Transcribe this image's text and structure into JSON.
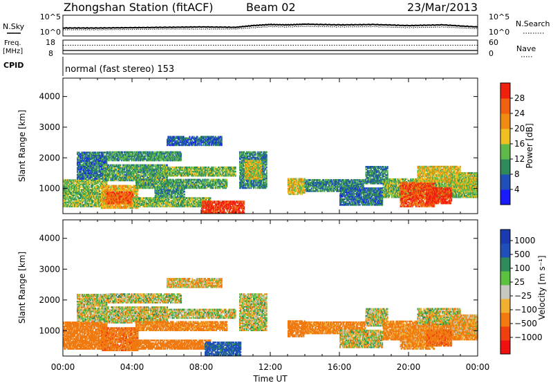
{
  "header": {
    "station": "Zhongshan Station (fitACF)",
    "beam": "Beam 02",
    "date": "23/Mar/2013"
  },
  "noise_panel": {
    "left_label": "N.Sky",
    "right_label": "N.Search",
    "left_ticks": [
      "10^5",
      "10^0"
    ],
    "right_ticks": [
      "10^5",
      "10^0"
    ]
  },
  "freq_panel": {
    "left_label_line1": "Freq.",
    "left_label_line2": "[MHz]",
    "left_ticks": [
      "18",
      "8"
    ],
    "right_label": "Nave",
    "right_ticks": [
      "60",
      "0"
    ]
  },
  "cpid_panel": {
    "label": "CPID",
    "text": "normal (fast stereo) 153"
  },
  "axes": {
    "xlabel": "Time UT",
    "ylabel": "Slant Range [km]",
    "x_ticks": [
      "00:00",
      "04:00",
      "08:00",
      "12:00",
      "16:00",
      "20:00",
      "00:00"
    ],
    "y_ticks": [
      "1000",
      "2000",
      "3000",
      "4000"
    ]
  },
  "colors": {
    "power": [
      "#1a1aff",
      "#1f4fb8",
      "#2e8a5a",
      "#5fb84a",
      "#f0c020",
      "#f08a10",
      "#f06010",
      "#f02010"
    ],
    "velocity": [
      "#f01010",
      "#f04010",
      "#f07a10",
      "#f0b030",
      "#c8c8c0",
      "#5cc040",
      "#2e8a5a",
      "#1f4fb8",
      "#1a3ab0"
    ]
  },
  "chart_data": [
    {
      "type": "line",
      "title": "Zhongshan Station (fitACF)",
      "name": "noise",
      "series": [
        {
          "name": "N.Sky",
          "x_hours": [
            0,
            2,
            4,
            6,
            8,
            10,
            11,
            12,
            13,
            14,
            16,
            18,
            20,
            22,
            24
          ],
          "y_log10": [
            1.9,
            1.9,
            2.0,
            2.1,
            2.2,
            2.1,
            2.6,
            2.9,
            2.8,
            3.0,
            2.8,
            2.9,
            2.6,
            2.8,
            2.2
          ]
        },
        {
          "name": "N.Search",
          "x_hours": [
            0,
            2,
            4,
            6,
            8,
            10,
            11,
            12,
            13,
            14,
            16,
            18,
            20,
            22,
            24
          ],
          "y_log10": [
            1.4,
            1.4,
            1.5,
            1.6,
            1.6,
            1.6,
            2.0,
            2.3,
            2.2,
            2.4,
            2.2,
            2.3,
            2.0,
            2.2,
            1.7
          ]
        }
      ],
      "ylim": [
        0,
        5
      ]
    },
    {
      "type": "line",
      "name": "frequency",
      "x_hours": [
        0,
        24
      ],
      "freq_mhz": [
        10.5,
        10.5
      ],
      "nave": [
        38,
        38
      ]
    },
    {
      "type": "heatmap",
      "name": "power",
      "xlabel": "Time UT",
      "ylabel": "Slant Range [km]",
      "xlim": [
        0,
        24
      ],
      "ylim": [
        180,
        4600
      ],
      "colorbar": {
        "label": "Power [dB]",
        "ticks": [
          4,
          8,
          12,
          16,
          20,
          24,
          28
        ],
        "range": [
          0,
          32
        ]
      },
      "regions": [
        {
          "t0": 0.0,
          "t1": 2.5,
          "r0": 400,
          "r1": 1300,
          "v": 14
        },
        {
          "t0": 0.8,
          "t1": 2.5,
          "r0": 1300,
          "r1": 2200,
          "v": 8
        },
        {
          "t0": 2.2,
          "t1": 4.3,
          "r0": 350,
          "r1": 1100,
          "v": 20
        },
        {
          "t0": 2.5,
          "t1": 4.0,
          "r0": 500,
          "r1": 900,
          "v": 26
        },
        {
          "t0": 2.3,
          "t1": 6.0,
          "r0": 1250,
          "r1": 1750,
          "v": 12
        },
        {
          "t0": 2.5,
          "t1": 6.8,
          "r0": 1900,
          "r1": 2200,
          "v": 11
        },
        {
          "t0": 4.0,
          "t1": 8.5,
          "r0": 400,
          "r1": 700,
          "v": 14
        },
        {
          "t0": 5.3,
          "t1": 7.0,
          "r0": 700,
          "r1": 1000,
          "v": 10
        },
        {
          "t0": 5.8,
          "t1": 10.0,
          "r0": 1400,
          "r1": 1700,
          "v": 14
        },
        {
          "t0": 4.2,
          "t1": 9.5,
          "r0": 1000,
          "r1": 1280,
          "v": 12
        },
        {
          "t0": 6.0,
          "t1": 9.2,
          "r0": 2400,
          "r1": 2700,
          "v": 7
        },
        {
          "t0": 8.0,
          "t1": 10.5,
          "r0": 200,
          "r1": 600,
          "v": 29
        },
        {
          "t0": 10.2,
          "t1": 11.8,
          "r0": 1000,
          "r1": 2200,
          "v": 10
        },
        {
          "t0": 10.5,
          "t1": 11.5,
          "r0": 1300,
          "r1": 1900,
          "v": 17
        },
        {
          "t0": 13.0,
          "t1": 14.0,
          "r0": 800,
          "r1": 1300,
          "v": 18
        },
        {
          "t0": 14.0,
          "t1": 17.5,
          "r0": 900,
          "r1": 1300,
          "v": 10
        },
        {
          "t0": 16.0,
          "t1": 18.5,
          "r0": 450,
          "r1": 1000,
          "v": 8
        },
        {
          "t0": 17.5,
          "t1": 18.8,
          "r0": 1150,
          "r1": 1700,
          "v": 9
        },
        {
          "t0": 18.5,
          "t1": 24.0,
          "r0": 700,
          "r1": 1300,
          "v": 14
        },
        {
          "t0": 19.5,
          "t1": 21.5,
          "r0": 400,
          "r1": 1200,
          "v": 27
        },
        {
          "t0": 21.0,
          "t1": 22.5,
          "r0": 500,
          "r1": 1000,
          "v": 29
        },
        {
          "t0": 20.5,
          "t1": 23.0,
          "r0": 1200,
          "r1": 1700,
          "v": 18
        },
        {
          "t0": 22.5,
          "t1": 24.0,
          "r0": 900,
          "r1": 1500,
          "v": 16
        }
      ]
    },
    {
      "type": "heatmap",
      "name": "velocity",
      "xlabel": "Time UT",
      "ylabel": "Slant Range [km]",
      "xlim": [
        0,
        24
      ],
      "ylim": [
        180,
        4600
      ],
      "colorbar": {
        "label": "Velocity [m s-1]",
        "ticks": [
          1000,
          500,
          100,
          25,
          -25,
          -100,
          -500,
          -1000
        ]
      },
      "regions": [
        {
          "t0": 0.0,
          "t1": 2.5,
          "r0": 400,
          "r1": 1300,
          "v": -300
        },
        {
          "t0": 0.8,
          "t1": 2.5,
          "r0": 1300,
          "r1": 2200,
          "v": 0
        },
        {
          "t0": 2.2,
          "t1": 4.3,
          "r0": 350,
          "r1": 1100,
          "v": -400
        },
        {
          "t0": 2.3,
          "t1": 6.0,
          "r0": 1250,
          "r1": 1750,
          "v": 0
        },
        {
          "t0": 2.5,
          "t1": 6.8,
          "r0": 1900,
          "r1": 2200,
          "v": 0
        },
        {
          "t0": 4.0,
          "t1": 8.5,
          "r0": 400,
          "r1": 700,
          "v": -300
        },
        {
          "t0": 4.2,
          "t1": 9.5,
          "r0": 1000,
          "r1": 1280,
          "v": -200
        },
        {
          "t0": 5.8,
          "t1": 10.0,
          "r0": 1400,
          "r1": 1700,
          "v": 0
        },
        {
          "t0": 6.0,
          "t1": 9.2,
          "r0": 2400,
          "r1": 2700,
          "v": -60
        },
        {
          "t0": 8.2,
          "t1": 10.3,
          "r0": 200,
          "r1": 650,
          "v": 600
        },
        {
          "t0": 10.2,
          "t1": 11.8,
          "r0": 1000,
          "r1": 2200,
          "v": 0
        },
        {
          "t0": 13.0,
          "t1": 14.0,
          "r0": 800,
          "r1": 1300,
          "v": -300
        },
        {
          "t0": 14.0,
          "t1": 17.5,
          "r0": 900,
          "r1": 1300,
          "v": -200
        },
        {
          "t0": 16.0,
          "t1": 18.5,
          "r0": 450,
          "r1": 1000,
          "v": 0
        },
        {
          "t0": 17.5,
          "t1": 18.8,
          "r0": 1150,
          "r1": 1700,
          "v": 0
        },
        {
          "t0": 18.5,
          "t1": 24.0,
          "r0": 700,
          "r1": 1300,
          "v": -200
        },
        {
          "t0": 19.5,
          "t1": 21.5,
          "r0": 400,
          "r1": 1200,
          "v": -150
        },
        {
          "t0": 21.0,
          "t1": 22.5,
          "r0": 500,
          "r1": 1000,
          "v": -400
        },
        {
          "t0": 20.5,
          "t1": 23.0,
          "r0": 1200,
          "r1": 1700,
          "v": 0
        },
        {
          "t0": 22.5,
          "t1": 24.0,
          "r0": 900,
          "r1": 1500,
          "v": -100
        }
      ]
    }
  ]
}
